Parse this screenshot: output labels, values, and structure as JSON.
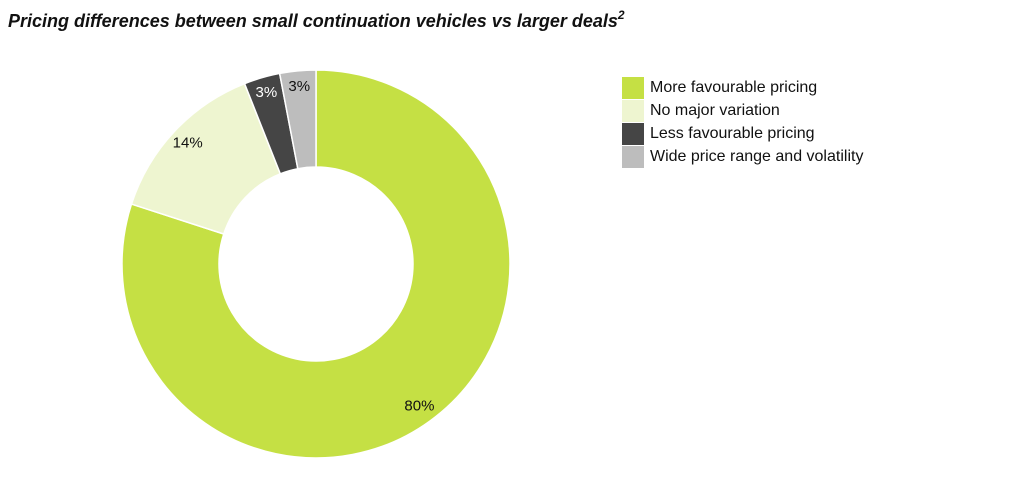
{
  "chart_data": {
    "type": "donut",
    "title": "Pricing differences between small continuation vehicles vs larger deals",
    "title_superscript": "2",
    "categories": [
      "More favourable pricing",
      "No major variation",
      "Less favourable pricing",
      "Wide price range and volatility"
    ],
    "values": [
      80,
      14,
      3,
      3
    ],
    "value_labels": [
      "80%",
      "14%",
      "3%",
      "3%"
    ],
    "colors": [
      "#c5e044",
      "#eef5d0",
      "#454545",
      "#bdbdbd"
    ],
    "label_colors": [
      "#111111",
      "#111111",
      "#ffffff",
      "#111111"
    ],
    "legend": "right"
  }
}
